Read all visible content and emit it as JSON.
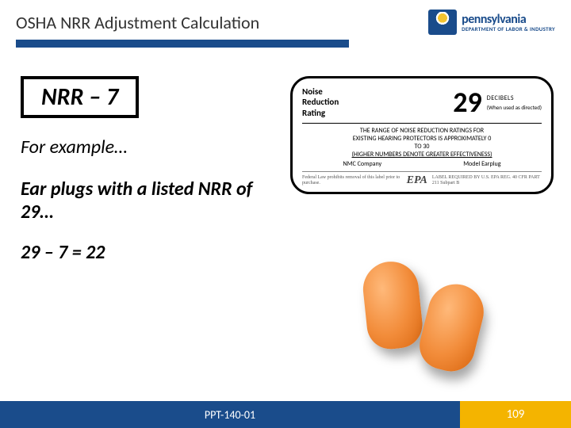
{
  "header": {
    "title": "OSHA NRR Adjustment Calculation",
    "brand_main": "pennsylvania",
    "brand_sub": "DEPARTMENT OF LABOR & INDUSTRY",
    "brand_color": "#1a4c8b",
    "accent_color": "#f4b400"
  },
  "content": {
    "formula": "NRR – 7",
    "lead": "For example…",
    "statement": "Ear plugs with a listed NRR of 29…",
    "calculation": "29 – 7 = 22"
  },
  "label": {
    "nrr_title_l1": "Noise",
    "nrr_title_l2": "Reduction",
    "nrr_title_l3": "Rating",
    "value": "29",
    "unit": "DECIBELS",
    "when": "(When used as directed)",
    "range_l1": "THE RANGE OF NOISE REDUCTION RATINGS FOR",
    "range_l2": "EXISTING HEARING PROTECTORS IS APPROXIMATELY 0",
    "range_l3": "TO 30",
    "range_l4": "(HIGHER NUMBERS DENOTE GREATER EFFECTIVENESS)",
    "maker": "NMC Company",
    "model": "Model Earplug",
    "epa_left": "Federal Law prohibits removal of this label prior to purchase.",
    "epa_mid": "EPA",
    "epa_right": "LABEL REQUIRED BY U.S. EPA REG. 40 CFR PART 211 Subpart B"
  },
  "earplugs": {
    "fill_light": "#ffb97a",
    "fill_mid": "#f28c3a",
    "fill_dark": "#d9660f"
  },
  "footer": {
    "code": "PPT-140-01",
    "page": "109"
  }
}
